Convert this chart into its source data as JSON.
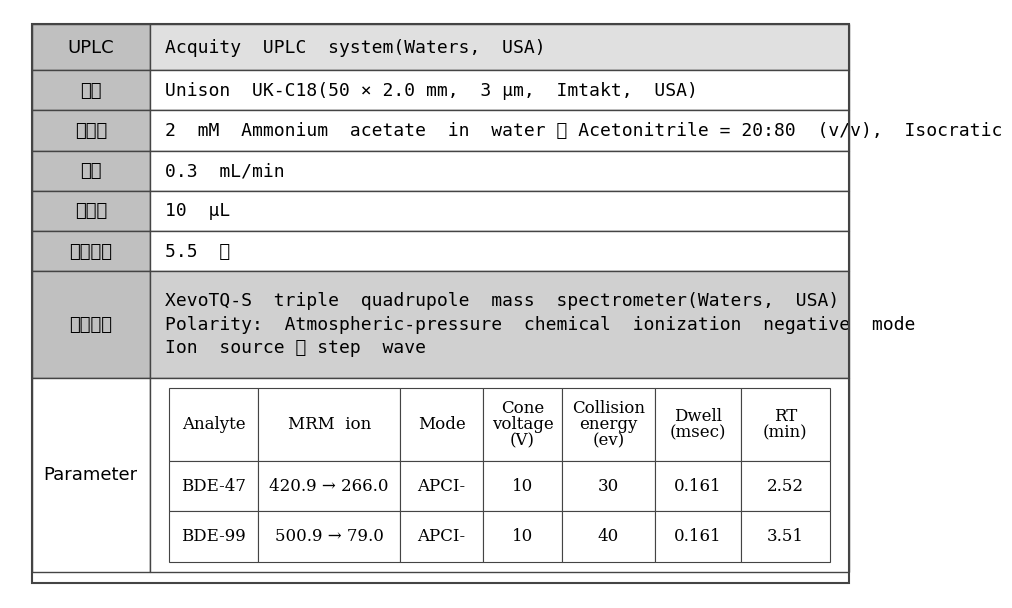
{
  "outer_bg": "#ffffff",
  "border_color": "#444444",
  "text_color": "#000000",
  "main_rows": [
    {
      "label": "UPLC",
      "value": "Acquity  UPLC  system(Waters,  USA)",
      "label_bg": "#c0c0c0",
      "value_bg": "#e0e0e0"
    },
    {
      "label": "콜럼",
      "value": "Unison  UK-C18(50 × 2.0 mm,  3 μm,  Imtakt,  USA)",
      "label_bg": "#c0c0c0",
      "value_bg": "#ffffff"
    },
    {
      "label": "이동상",
      "value": "2  mM  Ammonium  acetate  in  water ： Acetonitrile = 20:80  (v/v),  Isocratic",
      "label_bg": "#c0c0c0",
      "value_bg": "#ffffff"
    },
    {
      "label": "유속",
      "value": "0.3  mL/min",
      "label_bg": "#c0c0c0",
      "value_bg": "#ffffff"
    },
    {
      "label": "주입량",
      "value": "10  μL",
      "label_bg": "#c0c0c0",
      "value_bg": "#ffffff"
    },
    {
      "label": "분석시간",
      "value": "5.5  분",
      "label_bg": "#c0c0c0",
      "value_bg": "#ffffff"
    }
  ],
  "detector_label": "검출기기",
  "detector_lines": [
    "XevoTQ-S  triple  quadrupole  mass  spectrometer(Waters,  USA)",
    "Polarity:  Atmospheric-pressure  chemical  ionization  negative  mode",
    "Ion  source ： step  wave"
  ],
  "detector_label_bg": "#c0c0c0",
  "detector_value_bg": "#d0d0d0",
  "param_label": "Parameter",
  "param_label_bg": "#ffffff",
  "param_table_headers": [
    "Analyte",
    "MRM  ion",
    "Mode",
    "Cone\nvoltage\n(V)",
    "Collision\nenergy\n(ev)",
    "Dwell\n(msec)",
    "RT\n(min)"
  ],
  "param_table_rows": [
    [
      "BDE-47",
      "420.9 → 266.0",
      "APCI-",
      "10",
      "30",
      "0.161",
      "2.52"
    ],
    [
      "BDE-99",
      "500.9 → 79.0",
      "APCI-",
      "10",
      "40",
      "0.161",
      "3.51"
    ]
  ],
  "param_table_border": "#444444",
  "font_size_main": 13,
  "font_size_label": 13,
  "font_size_param": 12
}
